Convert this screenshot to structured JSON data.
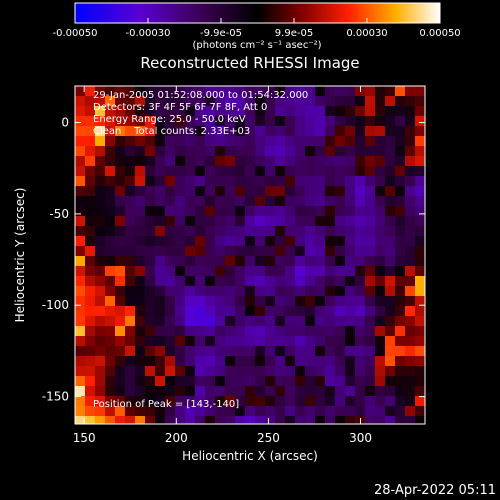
{
  "chart_data": {
    "type": "heatmap",
    "title": "Reconstructed RHESSI Image",
    "xlabel": "Heliocentric X (arcsec)",
    "ylabel": "Heliocentric Y (arcsec)",
    "xlim": [
      145,
      335
    ],
    "ylim": [
      -165,
      20
    ],
    "x_ticks": [
      150,
      200,
      250,
      300
    ],
    "y_ticks": [
      0,
      -50,
      -100,
      -150
    ],
    "colorbar": {
      "min": -0.0005,
      "max": 0.0005,
      "tick_labels": [
        "-0.00050",
        "-0.00030",
        "-9.9e-05",
        "9.9e-05",
        "0.00030",
        "0.00050"
      ],
      "unit_label": "(photons cm⁻² s⁻¹ asec⁻²)",
      "colormap": [
        "#0000ff",
        "#6a00c8",
        "#3a0040",
        "#000000",
        "#700000",
        "#e01000",
        "#ff7000",
        "#ffd000",
        "#ffffff"
      ]
    },
    "annotations": {
      "time": "29-Jan-2005 01:52:08.000 to 01:54:32.000",
      "detectors": "Detectors: 3F 4F 5F 6F 7F 8F, Att 0",
      "energy": "Energy Range: 25.0 - 50.0 keV",
      "clean": "Clean    Total counts: 2.33E+03",
      "peak": "Position of Peak = [143,-140]"
    },
    "grid": false,
    "legend": "none"
  },
  "footer": {
    "date": "28-Apr-2022 05:11"
  }
}
